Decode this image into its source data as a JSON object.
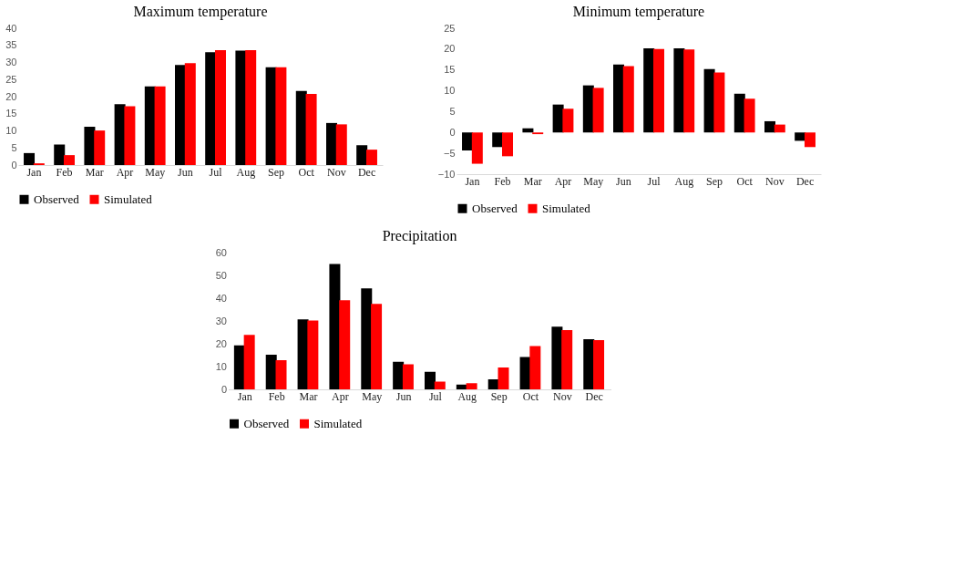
{
  "chart_data": [
    {
      "type": "bar",
      "title": "Maximum temperature",
      "categories": [
        "Jan",
        "Feb",
        "Mar",
        "Apr",
        "May",
        "Jun",
        "Jul",
        "Aug",
        "Sep",
        "Oct",
        "Nov",
        "Dec"
      ],
      "ylim": [
        0,
        40
      ],
      "yticks": [
        0,
        5,
        10,
        15,
        20,
        25,
        30,
        35,
        40
      ],
      "grid": false,
      "legend": "bottom",
      "series": [
        {
          "name": "Observed",
          "color": "#000000",
          "values": [
            3.5,
            6,
            11.2,
            17.8,
            23,
            29.3,
            33,
            33.5,
            28.6,
            21.7,
            12.3,
            5.8
          ]
        },
        {
          "name": "Simulated",
          "color": "#ff0000",
          "values": [
            0.5,
            2.9,
            10.1,
            17.2,
            23,
            29.8,
            33.6,
            33.6,
            28.6,
            20.8,
            11.9,
            4.5
          ]
        }
      ]
    },
    {
      "type": "bar",
      "title": "Minimum temperature",
      "categories": [
        "Jan",
        "Feb",
        "Mar",
        "Apr",
        "May",
        "Jun",
        "Jul",
        "Aug",
        "Sep",
        "Oct",
        "Nov",
        "Dec"
      ],
      "ylim": [
        -10,
        25
      ],
      "yticks": [
        -10,
        -5,
        0,
        5,
        10,
        15,
        20,
        25
      ],
      "grid": false,
      "legend": "bottom",
      "series": [
        {
          "name": "Observed",
          "color": "#000000",
          "values": [
            -4.3,
            -3.5,
            1.0,
            6.7,
            11.3,
            16.3,
            20.2,
            20.2,
            15.2,
            9.3,
            2.7,
            -2.0
          ]
        },
        {
          "name": "Simulated",
          "color": "#ff0000",
          "values": [
            -7.5,
            -5.7,
            -0.4,
            5.7,
            10.7,
            15.9,
            20.0,
            19.9,
            14.4,
            8.1,
            1.9,
            -3.5
          ]
        }
      ]
    },
    {
      "type": "bar",
      "title": "Precipitation",
      "categories": [
        "Jan",
        "Feb",
        "Mar",
        "Apr",
        "May",
        "Jun",
        "Jul",
        "Aug",
        "Sep",
        "Oct",
        "Nov",
        "Dec"
      ],
      "ylim": [
        0,
        60
      ],
      "yticks": [
        0,
        10,
        20,
        30,
        40,
        50,
        60
      ],
      "grid": false,
      "legend": "bottom",
      "series": [
        {
          "name": "Observed",
          "color": "#000000",
          "values": [
            19.3,
            15.2,
            30.7,
            55,
            44.3,
            12.1,
            7.7,
            2.1,
            4.4,
            14.2,
            27.5,
            22
          ]
        },
        {
          "name": "Simulated",
          "color": "#ff0000",
          "values": [
            23.9,
            12.8,
            30.2,
            39.1,
            37.5,
            11,
            3.4,
            2.7,
            9.6,
            19,
            26,
            21.6
          ]
        }
      ]
    }
  ]
}
